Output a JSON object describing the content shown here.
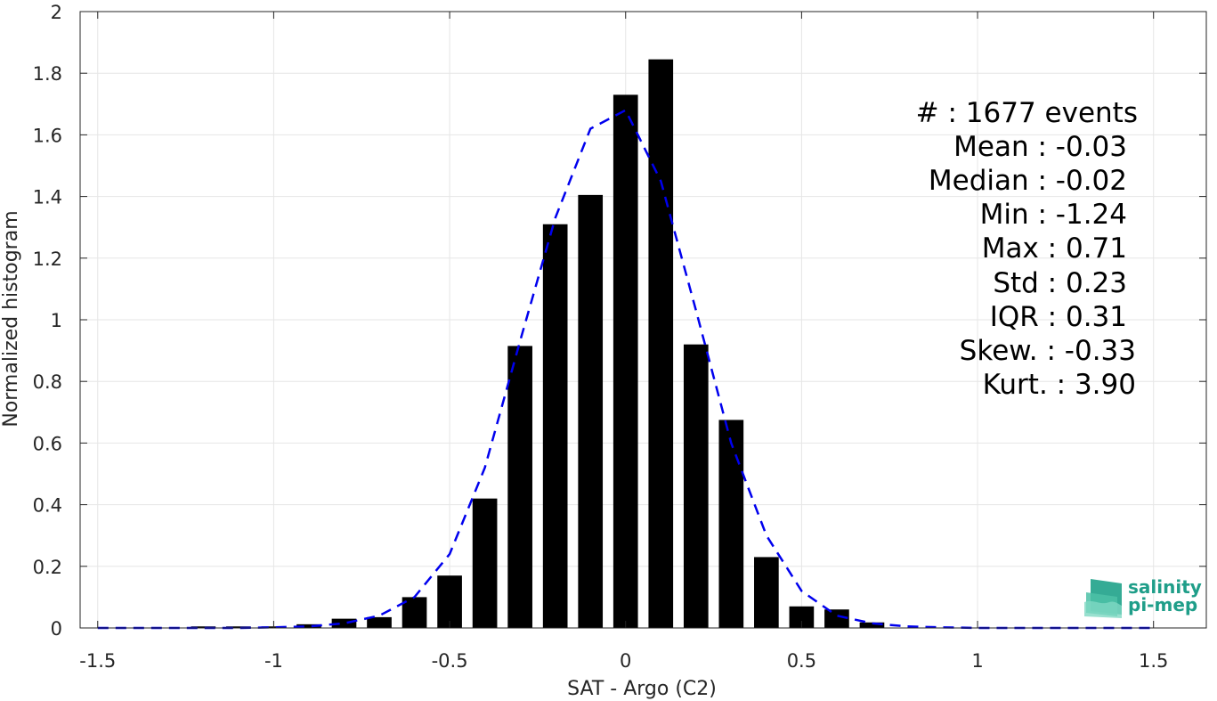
{
  "chart_data": {
    "type": "bar",
    "xlabel": "SAT - Argo (C2)",
    "ylabel": "Normalized histogram",
    "xlim": [
      -1.55,
      1.65
    ],
    "ylim": [
      0,
      2
    ],
    "grid": true,
    "x_ticks": [
      -1.5,
      -1,
      -0.5,
      0,
      0.5,
      1,
      1.5
    ],
    "x_tick_labels": [
      "-1.5",
      "-1",
      "-0.5",
      "0",
      "0.5",
      "1",
      "1.5"
    ],
    "y_ticks": [
      0,
      0.2,
      0.4,
      0.6,
      0.8,
      1,
      1.2,
      1.4,
      1.6,
      1.8,
      2
    ],
    "y_tick_labels": [
      "0",
      "0.2",
      "0.4",
      "0.6",
      "0.8",
      "1",
      "1.2",
      "1.4",
      "1.6",
      "1.8",
      "2"
    ],
    "bar_width": 0.07,
    "bar_color": "#000000",
    "series": [
      {
        "x": [
          -1.2,
          -1.1,
          -1.0,
          -0.9,
          -0.8,
          -0.7,
          -0.6,
          -0.5,
          -0.4,
          -0.3,
          -0.2,
          -0.1,
          0.0,
          0.1,
          0.2,
          0.3,
          0.4,
          0.5,
          0.6,
          0.7
        ],
        "values": [
          0.005,
          0.005,
          0.005,
          0.012,
          0.03,
          0.035,
          0.1,
          0.17,
          0.42,
          0.915,
          1.31,
          1.405,
          1.73,
          1.845,
          0.92,
          0.675,
          0.23,
          0.07,
          0.06,
          0.018
        ]
      }
    ],
    "fit_curve": {
      "style": "dashed",
      "color": "#0000ee",
      "x": [
        -1.5,
        -1.4,
        -1.3,
        -1.2,
        -1.1,
        -1.0,
        -0.9,
        -0.8,
        -0.7,
        -0.6,
        -0.5,
        -0.4,
        -0.3,
        -0.2,
        -0.1,
        0.0,
        0.1,
        0.2,
        0.3,
        0.4,
        0.5,
        0.6,
        0.7,
        0.8,
        0.9,
        1.0,
        1.1,
        1.2,
        1.3,
        1.4,
        1.5
      ],
      "y": [
        0,
        0,
        0,
        0,
        0,
        0.002,
        0.005,
        0.015,
        0.04,
        0.1,
        0.24,
        0.52,
        0.93,
        1.33,
        1.62,
        1.68,
        1.45,
        1.03,
        0.6,
        0.3,
        0.12,
        0.04,
        0.015,
        0.005,
        0.002,
        0,
        0,
        0,
        0,
        0,
        0
      ]
    }
  },
  "stats": [
    {
      "label": "#  : 1677 events"
    },
    {
      "label": "Mean : -0.03"
    },
    {
      "label": "Median : -0.02"
    },
    {
      "label": "Min : -1.24"
    },
    {
      "label": "Max : 0.71"
    },
    {
      "label": "Std : 0.23"
    },
    {
      "label": "IQR : 0.31"
    },
    {
      "label": "Skew. : -0.33"
    },
    {
      "label": "Kurt. : 3.90"
    }
  ],
  "logo": {
    "line1": "salinity",
    "line2": "pi-mep",
    "color": "#1f9e89"
  }
}
